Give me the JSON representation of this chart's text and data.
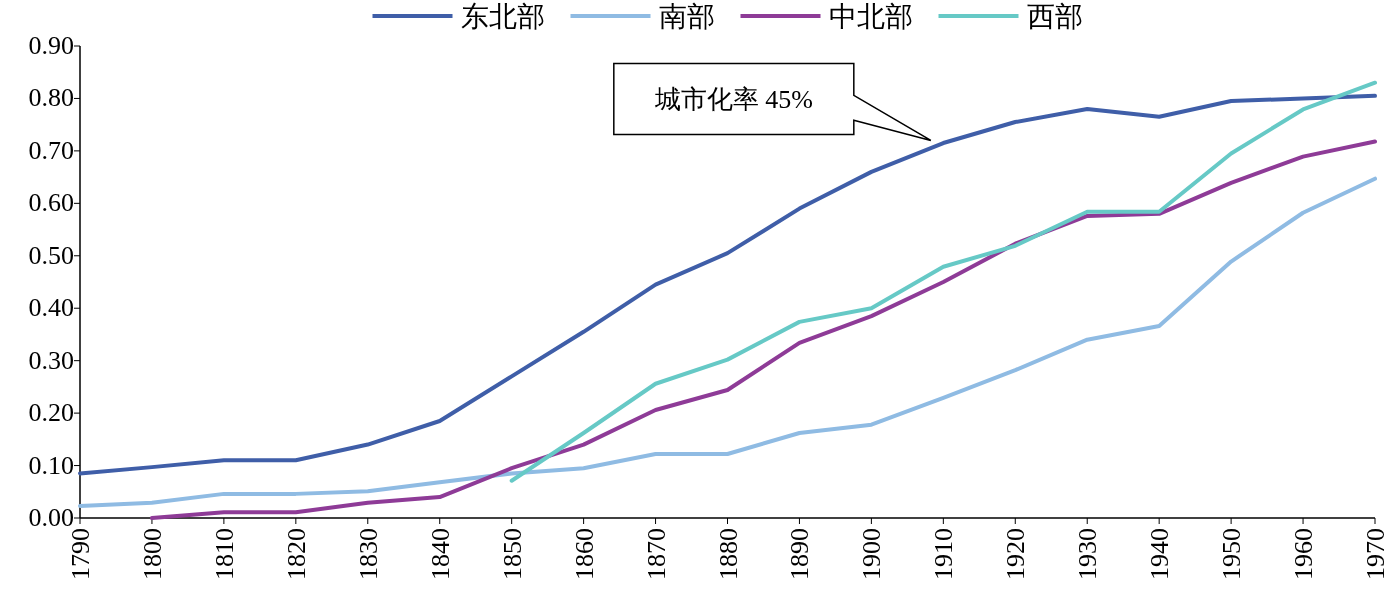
{
  "chart_data": {
    "type": "line",
    "categories": [
      "1790",
      "1800",
      "1810",
      "1820",
      "1830",
      "1840",
      "1850",
      "1860",
      "1870",
      "1880",
      "1890",
      "1900",
      "1910",
      "1920",
      "1930",
      "1940",
      "1950",
      "1960",
      "1970"
    ],
    "series": [
      {
        "name": "东北部",
        "color": "#3f5ea8",
        "values": [
          0.085,
          0.097,
          0.11,
          0.11,
          0.14,
          0.185,
          0.27,
          0.355,
          0.445,
          0.505,
          0.59,
          0.66,
          0.715,
          0.755,
          0.78,
          0.765,
          0.795,
          0.8,
          0.805
        ]
      },
      {
        "name": "南部",
        "color": "#8fbbe3",
        "values": [
          0.023,
          0.029,
          0.046,
          0.046,
          0.051,
          0.068,
          0.085,
          0.095,
          0.122,
          0.122,
          0.162,
          0.178,
          0.229,
          0.282,
          0.34,
          0.366,
          0.489,
          0.582,
          0.647
        ]
      },
      {
        "name": "中北部",
        "color": "#8e3b97",
        "values": [
          null,
          0.0,
          0.011,
          0.011,
          0.029,
          0.04,
          0.095,
          0.14,
          0.206,
          0.244,
          0.334,
          0.385,
          0.45,
          0.523,
          0.576,
          0.58,
          0.639,
          0.689,
          0.718
        ]
      },
      {
        "name": "西部",
        "color": "#66c9c6",
        "values": [
          null,
          null,
          null,
          null,
          null,
          null,
          0.071,
          0.162,
          0.256,
          0.302,
          0.374,
          0.4,
          0.479,
          0.519,
          0.584,
          0.584,
          0.695,
          0.779,
          0.83
        ]
      }
    ],
    "ylim": [
      0,
      0.9
    ],
    "yticks": [
      {
        "value": 0,
        "label": "0.00"
      },
      {
        "value": 0.1,
        "label": "0.10"
      },
      {
        "value": 0.2,
        "label": "0.20"
      },
      {
        "value": 0.3,
        "label": "0.30"
      },
      {
        "value": 0.4,
        "label": "0.40"
      },
      {
        "value": 0.5,
        "label": "0.50"
      },
      {
        "value": 0.6,
        "label": "0.60"
      },
      {
        "value": 0.7,
        "label": "0.70"
      },
      {
        "value": 0.8,
        "label": "0.80"
      },
      {
        "value": 0.9,
        "label": "0.90"
      }
    ],
    "annotations": [
      "城市化率 45%"
    ],
    "legend": "top",
    "grid": false,
    "marker": "none",
    "line_style": "solid"
  }
}
